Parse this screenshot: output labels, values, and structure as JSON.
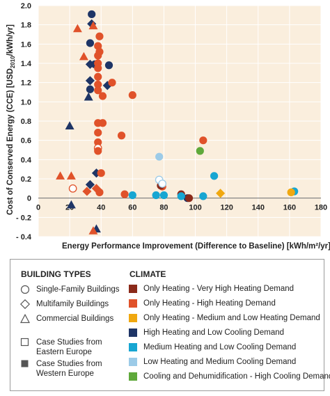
{
  "chart_data": {
    "type": "scatter",
    "ylabel": "Cost of Conserved Energy (CCE) [USD2010/kWh/yr]",
    "ylabel_main": "Cost of Conserved Energy (CCE) [USD",
    "ylabel_sub": "2010",
    "ylabel_tail": "/kWh/yr]",
    "xlabel": "Energy Performance Improvement (Difference to Baseline) [kWh/m²/yr]",
    "xlim": [
      0,
      180
    ],
    "ylim": [
      -0.4,
      2.0
    ],
    "xticks": [
      0,
      20,
      40,
      60,
      80,
      100,
      120,
      140,
      160,
      180
    ],
    "yticks": [
      -0.4,
      -0.2,
      0,
      0.2,
      0.4,
      0.6,
      0.8,
      1.0,
      1.2,
      1.4,
      1.6,
      1.8,
      2.0
    ],
    "ytick_labels": [
      "- 0.4",
      "- 0.2",
      "0",
      "0.2",
      "0.4",
      "0.6",
      "0.8",
      "1.0",
      "1.2",
      "1.4",
      "1.6",
      "1.8",
      "2.0"
    ],
    "xtick_labels": [
      "0",
      "20",
      "40",
      "60",
      "80",
      "100",
      "120",
      "140",
      "160",
      "180"
    ],
    "grid": true,
    "background": "#faeedd",
    "points": [
      {
        "x": 34,
        "y": 1.91,
        "shape": "circle",
        "fill": "filled",
        "climate": "navy"
      },
      {
        "x": 34,
        "y": 1.81,
        "shape": "diamond",
        "fill": "filled",
        "climate": "navy"
      },
      {
        "x": 33,
        "y": 1.61,
        "shape": "circle",
        "fill": "filled",
        "climate": "navy"
      },
      {
        "x": 33,
        "y": 1.39,
        "shape": "diamond",
        "fill": "filled",
        "climate": "navy"
      },
      {
        "x": 36,
        "y": 1.39,
        "shape": "circle",
        "fill": "filled",
        "climate": "navy"
      },
      {
        "x": 33,
        "y": 1.22,
        "shape": "diamond",
        "fill": "filled",
        "climate": "navy"
      },
      {
        "x": 33,
        "y": 1.13,
        "shape": "circle",
        "fill": "filled",
        "climate": "navy"
      },
      {
        "x": 32,
        "y": 1.05,
        "shape": "triangle",
        "fill": "filled",
        "climate": "navy"
      },
      {
        "x": 44,
        "y": 1.17,
        "shape": "diamond",
        "fill": "filled",
        "climate": "navy"
      },
      {
        "x": 45,
        "y": 1.38,
        "shape": "circle",
        "fill": "filled",
        "climate": "navy"
      },
      {
        "x": 20,
        "y": 0.75,
        "shape": "triangle",
        "fill": "filled",
        "climate": "navy"
      },
      {
        "x": 37,
        "y": 0.26,
        "shape": "diamond",
        "fill": "filled",
        "climate": "navy"
      },
      {
        "x": 33,
        "y": 0.14,
        "shape": "diamond",
        "fill": "filled",
        "climate": "navy"
      },
      {
        "x": 21,
        "y": -0.07,
        "shape": "triangle",
        "fill": "filled",
        "climate": "navy"
      },
      {
        "x": 37,
        "y": -0.32,
        "shape": "triangle",
        "fill": "filled",
        "climate": "navy"
      },
      {
        "x": 95,
        "y": 0.0,
        "shape": "circle",
        "fill": "filled",
        "climate": "navy"
      },
      {
        "x": 25,
        "y": 1.76,
        "shape": "triangle",
        "fill": "filled",
        "climate": "orange"
      },
      {
        "x": 35,
        "y": 1.79,
        "shape": "triangle",
        "fill": "filled",
        "climate": "orange"
      },
      {
        "x": 39,
        "y": 1.68,
        "shape": "circle",
        "fill": "filled",
        "climate": "orange"
      },
      {
        "x": 38,
        "y": 1.58,
        "shape": "circle",
        "fill": "filled",
        "climate": "orange"
      },
      {
        "x": 39,
        "y": 1.52,
        "shape": "circle",
        "fill": "filled",
        "climate": "orange"
      },
      {
        "x": 38,
        "y": 1.48,
        "shape": "circle",
        "fill": "filled",
        "climate": "orange"
      },
      {
        "x": 29,
        "y": 1.47,
        "shape": "triangle",
        "fill": "filled",
        "climate": "orange"
      },
      {
        "x": 38,
        "y": 1.4,
        "shape": "circle",
        "fill": "filled",
        "climate": "orange"
      },
      {
        "x": 38,
        "y": 1.35,
        "shape": "circle",
        "fill": "filled",
        "climate": "orange"
      },
      {
        "x": 38,
        "y": 1.26,
        "shape": "circle",
        "fill": "filled",
        "climate": "orange"
      },
      {
        "x": 38,
        "y": 1.18,
        "shape": "circle",
        "fill": "filled",
        "climate": "orange"
      },
      {
        "x": 38,
        "y": 1.12,
        "shape": "circle",
        "fill": "filled",
        "climate": "orange"
      },
      {
        "x": 41,
        "y": 1.06,
        "shape": "circle",
        "fill": "filled",
        "climate": "orange"
      },
      {
        "x": 47,
        "y": 1.2,
        "shape": "circle",
        "fill": "filled",
        "climate": "orange"
      },
      {
        "x": 60,
        "y": 1.07,
        "shape": "circle",
        "fill": "filled",
        "climate": "orange"
      },
      {
        "x": 38,
        "y": 0.78,
        "shape": "circle",
        "fill": "filled",
        "climate": "orange"
      },
      {
        "x": 41,
        "y": 0.78,
        "shape": "circle",
        "fill": "filled",
        "climate": "orange"
      },
      {
        "x": 38,
        "y": 0.68,
        "shape": "circle",
        "fill": "filled",
        "climate": "orange"
      },
      {
        "x": 53,
        "y": 0.65,
        "shape": "circle",
        "fill": "filled",
        "climate": "orange"
      },
      {
        "x": 38,
        "y": 0.58,
        "shape": "circle",
        "fill": "filled",
        "climate": "orange"
      },
      {
        "x": 38,
        "y": 0.52,
        "shape": "circle",
        "fill": "open",
        "climate": "orange"
      },
      {
        "x": 38,
        "y": 0.49,
        "shape": "circle",
        "fill": "filled",
        "climate": "orange"
      },
      {
        "x": 40,
        "y": 0.26,
        "shape": "circle",
        "fill": "filled",
        "climate": "orange"
      },
      {
        "x": 14,
        "y": 0.23,
        "shape": "triangle",
        "fill": "filled",
        "climate": "orange"
      },
      {
        "x": 21,
        "y": 0.23,
        "shape": "triangle",
        "fill": "filled",
        "climate": "orange"
      },
      {
        "x": 22,
        "y": 0.1,
        "shape": "circle",
        "fill": "open",
        "climate": "orange"
      },
      {
        "x": 37,
        "y": 0.1,
        "shape": "diamond",
        "fill": "filled",
        "climate": "orange"
      },
      {
        "x": 31,
        "y": 0.07,
        "shape": "diamond",
        "fill": "filled",
        "climate": "orange"
      },
      {
        "x": 39,
        "y": 0.06,
        "shape": "circle",
        "fill": "filled",
        "climate": "orange"
      },
      {
        "x": 55,
        "y": 0.04,
        "shape": "circle",
        "fill": "filled",
        "climate": "orange"
      },
      {
        "x": 79,
        "y": 0.12,
        "shape": "circle",
        "fill": "filled",
        "climate": "orange"
      },
      {
        "x": 105,
        "y": 0.6,
        "shape": "circle",
        "fill": "filled",
        "climate": "orange"
      },
      {
        "x": 35,
        "y": -0.34,
        "shape": "triangle",
        "fill": "filled",
        "climate": "orange"
      },
      {
        "x": 91,
        "y": 0.04,
        "shape": "circle",
        "fill": "filled",
        "climate": "darkred"
      },
      {
        "x": 78,
        "y": 0.13,
        "shape": "circle",
        "fill": "filled",
        "climate": "darkred"
      },
      {
        "x": 96,
        "y": 0.0,
        "shape": "circle",
        "fill": "filled",
        "climate": "darkred"
      },
      {
        "x": 60,
        "y": 0.03,
        "shape": "circle",
        "fill": "filled",
        "climate": "teal"
      },
      {
        "x": 75,
        "y": 0.03,
        "shape": "circle",
        "fill": "filled",
        "climate": "teal"
      },
      {
        "x": 80,
        "y": 0.03,
        "shape": "circle",
        "fill": "filled",
        "climate": "teal"
      },
      {
        "x": 91,
        "y": 0.02,
        "shape": "circle",
        "fill": "filled",
        "climate": "teal"
      },
      {
        "x": 105,
        "y": 0.02,
        "shape": "circle",
        "fill": "filled",
        "climate": "teal"
      },
      {
        "x": 112,
        "y": 0.23,
        "shape": "circle",
        "fill": "filled",
        "climate": "teal"
      },
      {
        "x": 163,
        "y": 0.07,
        "shape": "circle",
        "fill": "filled",
        "climate": "teal"
      },
      {
        "x": 77,
        "y": 0.43,
        "shape": "circle",
        "fill": "filled",
        "climate": "lightblue"
      },
      {
        "x": 77,
        "y": 0.19,
        "shape": "circle",
        "fill": "open",
        "climate": "lightblue"
      },
      {
        "x": 79,
        "y": 0.15,
        "shape": "circle",
        "fill": "open",
        "climate": "lightblue"
      },
      {
        "x": 103,
        "y": 0.49,
        "shape": "circle",
        "fill": "filled",
        "climate": "green"
      },
      {
        "x": 116,
        "y": 0.05,
        "shape": "diamond",
        "fill": "filled",
        "climate": "gold"
      },
      {
        "x": 161,
        "y": 0.06,
        "shape": "circle",
        "fill": "filled",
        "climate": "gold"
      }
    ]
  },
  "climate_colors": {
    "darkred": "#8b2a1a",
    "orange": "#e0522a",
    "gold": "#f0a810",
    "navy": "#1e3566",
    "teal": "#17a6d2",
    "lightblue": "#9ccbe8",
    "green": "#5fa93b"
  },
  "legend": {
    "building_types_title": "BUILDING TYPES",
    "climate_title": "CLIMATE",
    "building_types": [
      {
        "label": "Single-Family Buildings",
        "icon": "open-circle-icon"
      },
      {
        "label": "Multifamily Buildings",
        "icon": "open-diamond-icon"
      },
      {
        "label": "Commercial Buildings",
        "icon": "open-triangle-icon"
      }
    ],
    "case_studies": [
      {
        "label_1": "Case Studies from",
        "label_2": "Eastern Europe",
        "icon": "open-square-icon"
      },
      {
        "label_1": "Case Studies from",
        "label_2": "Western Europe",
        "icon": "filled-square-icon"
      }
    ],
    "climates": [
      {
        "label": "Only Heating - Very High Heating Demand",
        "color": "#8b2a1a"
      },
      {
        "label": "Only Heating -  High Heating Demand",
        "color": "#e0522a"
      },
      {
        "label": "Only Heating - Medium and Low Heating Demand",
        "color": "#f0a810"
      },
      {
        "label": "High Heating and Low Cooling Demand",
        "color": "#1e3566"
      },
      {
        "label": "Medium Heating and Low Cooling Demand",
        "color": "#17a6d2"
      },
      {
        "label": "Low Heating and Medium Cooling Demand",
        "color": "#9ccbe8"
      },
      {
        "label": "Cooling and Dehumidification - High Cooling Demand",
        "color": "#5fa93b"
      }
    ]
  }
}
